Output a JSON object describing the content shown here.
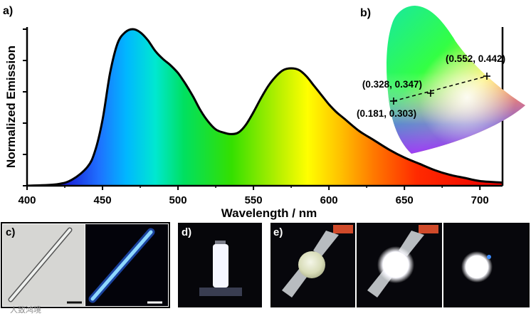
{
  "panels": {
    "a": "a)",
    "b": "b)",
    "c": "c)",
    "d": "d)",
    "e": "e)"
  },
  "watermark": "人致鸿境",
  "chart_data": {
    "type": "area",
    "xlabel": "Wavelength / nm",
    "ylabel": "Normalized Emission",
    "xlim": [
      400,
      715
    ],
    "ylim": [
      0,
      1.0
    ],
    "xticks": [
      400,
      450,
      500,
      550,
      600,
      650,
      700
    ],
    "x": [
      400,
      420,
      430,
      440,
      445,
      450,
      455,
      460,
      465,
      470,
      475,
      480,
      485,
      490,
      495,
      500,
      505,
      510,
      515,
      520,
      525,
      530,
      535,
      540,
      545,
      550,
      555,
      560,
      565,
      570,
      575,
      580,
      585,
      590,
      595,
      600,
      605,
      610,
      620,
      630,
      640,
      650,
      660,
      670,
      680,
      690,
      700,
      715
    ],
    "y": [
      0.0,
      0.01,
      0.04,
      0.12,
      0.22,
      0.42,
      0.72,
      0.91,
      0.98,
      1.0,
      0.98,
      0.93,
      0.86,
      0.81,
      0.77,
      0.72,
      0.65,
      0.57,
      0.48,
      0.41,
      0.36,
      0.34,
      0.33,
      0.34,
      0.39,
      0.47,
      0.56,
      0.64,
      0.7,
      0.74,
      0.75,
      0.74,
      0.7,
      0.64,
      0.58,
      0.52,
      0.47,
      0.43,
      0.35,
      0.29,
      0.23,
      0.18,
      0.14,
      0.1,
      0.07,
      0.05,
      0.03,
      0.02
    ],
    "cie_points": [
      {
        "label": "(0.181, 0.303)",
        "x": 0.181,
        "y": 0.303
      },
      {
        "label": "(0.328, 0.347)",
        "x": 0.328,
        "y": 0.347
      },
      {
        "label": "(0.552, 0.442)",
        "x": 0.552,
        "y": 0.442
      }
    ]
  },
  "colors": {
    "curve": "#000000",
    "photo_background": "#07070c",
    "glow": "#ffffff",
    "rod_blue": "#7fd6ff"
  }
}
